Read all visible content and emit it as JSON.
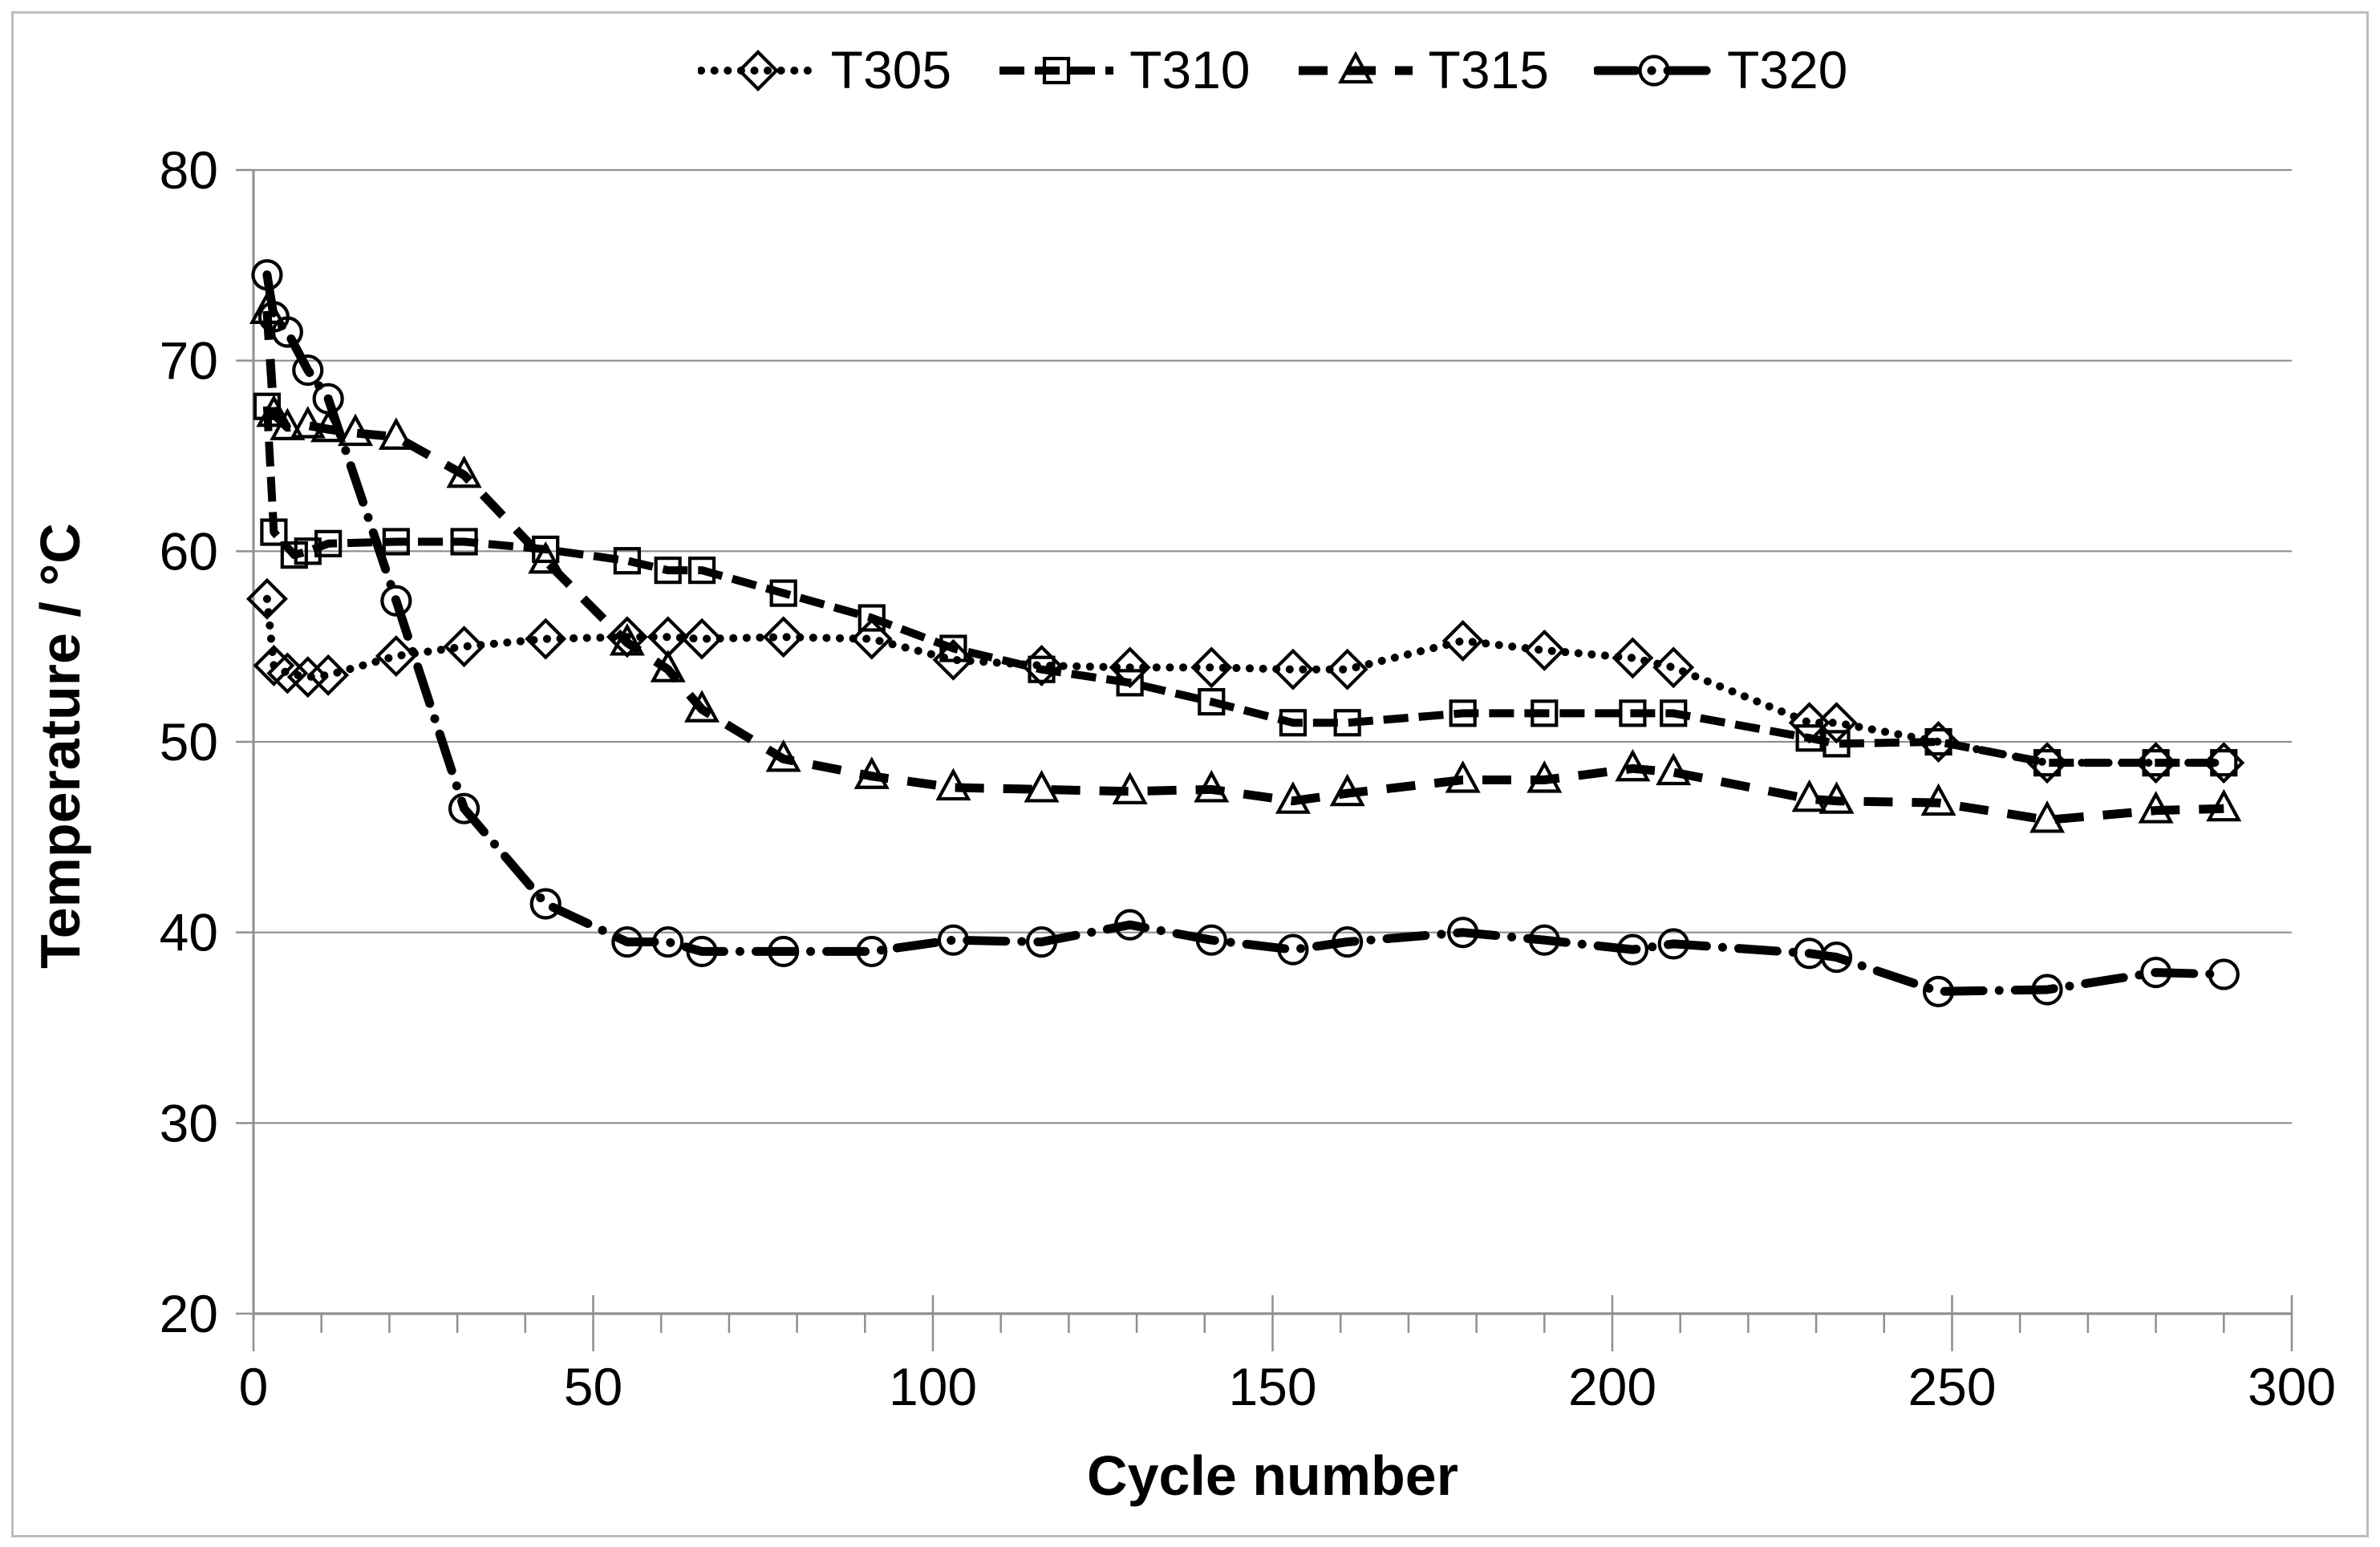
{
  "chart_data": {
    "type": "line",
    "title": "",
    "xlabel": "Cycle number",
    "ylabel": "Temperature / °C",
    "xlim": [
      0,
      300
    ],
    "ylim": [
      20,
      80
    ],
    "xticks": [
      0,
      50,
      100,
      150,
      200,
      250,
      300
    ],
    "xtick_minor_step": 10,
    "yticks": [
      20,
      30,
      40,
      50,
      60,
      70,
      80
    ],
    "grid": "horizontal-only",
    "legend_position": "top-center",
    "colors": {
      "series": "#000000",
      "gridline": "#8f8f8f",
      "axis": "#8f8f8f",
      "text": "#000000",
      "frame_border": "#bdbdbd",
      "background": "#ffffff"
    },
    "series": [
      {
        "name": "T305",
        "marker": "diamond",
        "linestyle": "dotted",
        "points": [
          [
            2,
            57.5
          ],
          [
            3,
            54.0
          ],
          [
            5,
            53.6
          ],
          [
            8,
            53.4
          ],
          [
            11,
            53.5
          ],
          [
            21,
            54.5
          ],
          [
            31,
            55.0
          ],
          [
            43,
            55.4
          ],
          [
            55,
            55.5
          ],
          [
            61,
            55.5
          ],
          [
            66,
            55.4
          ],
          [
            78,
            55.5
          ],
          [
            91,
            55.4
          ],
          [
            103,
            54.3
          ],
          [
            116,
            54.0
          ],
          [
            129,
            53.9
          ],
          [
            141,
            53.9
          ],
          [
            153,
            53.8
          ],
          [
            161,
            53.8
          ],
          [
            178,
            55.3
          ],
          [
            190,
            54.8
          ],
          [
            203,
            54.4
          ],
          [
            209,
            53.9
          ],
          [
            229,
            51.0
          ],
          [
            233,
            51.0
          ],
          [
            248,
            50.0
          ],
          [
            264,
            48.9
          ],
          [
            280,
            48.9
          ],
          [
            290,
            48.9
          ]
        ]
      },
      {
        "name": "T310",
        "marker": "square",
        "linestyle": "dashed",
        "points": [
          [
            2,
            67.6
          ],
          [
            3,
            61.0
          ],
          [
            6,
            59.8
          ],
          [
            8,
            60.0
          ],
          [
            11,
            60.4
          ],
          [
            21,
            60.5
          ],
          [
            31,
            60.5
          ],
          [
            43,
            60.1
          ],
          [
            55,
            59.5
          ],
          [
            61,
            59.0
          ],
          [
            66,
            59.0
          ],
          [
            78,
            57.8
          ],
          [
            91,
            56.5
          ],
          [
            103,
            54.9
          ],
          [
            116,
            53.8
          ],
          [
            129,
            53.1
          ],
          [
            141,
            52.1
          ],
          [
            153,
            51.0
          ],
          [
            161,
            51.0
          ],
          [
            178,
            51.5
          ],
          [
            190,
            51.5
          ],
          [
            203,
            51.5
          ],
          [
            209,
            51.5
          ],
          [
            229,
            50.2
          ],
          [
            233,
            49.9
          ],
          [
            248,
            50.0
          ],
          [
            264,
            48.9
          ],
          [
            280,
            48.9
          ],
          [
            290,
            48.9
          ]
        ]
      },
      {
        "name": "T315",
        "marker": "triangle",
        "linestyle": "long-dash",
        "points": [
          [
            2,
            72.6
          ],
          [
            3,
            67.2
          ],
          [
            5,
            66.5
          ],
          [
            8,
            66.6
          ],
          [
            11,
            66.4
          ],
          [
            15,
            66.2
          ],
          [
            21,
            66.0
          ],
          [
            31,
            64.0
          ],
          [
            43,
            59.5
          ],
          [
            55,
            55.2
          ],
          [
            61,
            53.8
          ],
          [
            66,
            51.7
          ],
          [
            78,
            49.1
          ],
          [
            91,
            48.2
          ],
          [
            103,
            47.6
          ],
          [
            116,
            47.5
          ],
          [
            129,
            47.4
          ],
          [
            141,
            47.5
          ],
          [
            153,
            46.9
          ],
          [
            161,
            47.3
          ],
          [
            178,
            48.0
          ],
          [
            190,
            48.0
          ],
          [
            203,
            48.6
          ],
          [
            209,
            48.4
          ],
          [
            229,
            47.0
          ],
          [
            233,
            46.9
          ],
          [
            248,
            46.8
          ],
          [
            264,
            45.9
          ],
          [
            280,
            46.4
          ],
          [
            290,
            46.5
          ]
        ]
      },
      {
        "name": "T320",
        "marker": "circle",
        "linestyle": "dash-dot",
        "points": [
          [
            2,
            74.5
          ],
          [
            3,
            72.3
          ],
          [
            5,
            71.5
          ],
          [
            8,
            69.5
          ],
          [
            11,
            68.0
          ],
          [
            21,
            57.4
          ],
          [
            31,
            46.5
          ],
          [
            43,
            41.5
          ],
          [
            55,
            39.5
          ],
          [
            61,
            39.5
          ],
          [
            66,
            39.0
          ],
          [
            78,
            39.0
          ],
          [
            91,
            39.0
          ],
          [
            103,
            39.6
          ],
          [
            116,
            39.5
          ],
          [
            129,
            40.4
          ],
          [
            141,
            39.6
          ],
          [
            153,
            39.1
          ],
          [
            161,
            39.5
          ],
          [
            178,
            40.0
          ],
          [
            190,
            39.6
          ],
          [
            203,
            39.1
          ],
          [
            209,
            39.4
          ],
          [
            229,
            38.9
          ],
          [
            233,
            38.7
          ],
          [
            248,
            36.9
          ],
          [
            264,
            37.0
          ],
          [
            280,
            37.9
          ],
          [
            290,
            37.8
          ]
        ]
      }
    ]
  }
}
